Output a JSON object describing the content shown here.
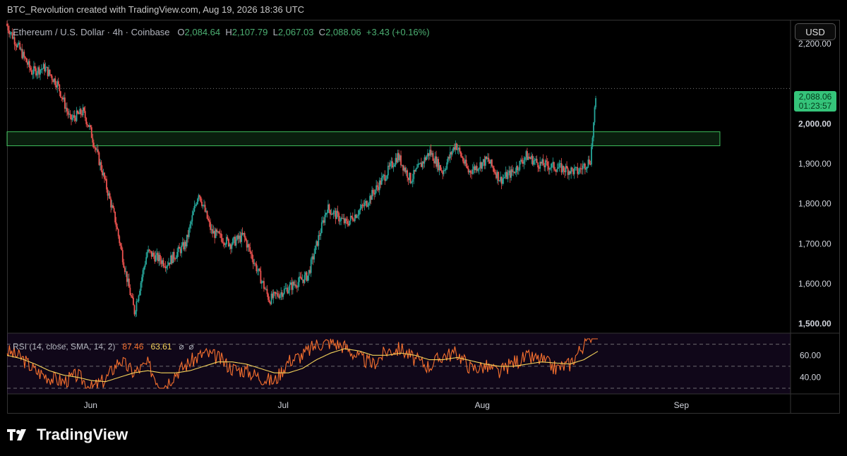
{
  "header": {
    "title": "BTC_Revolution created with TradingView.com, Aug 19, 2026 18:36 UTC"
  },
  "toolbar": {
    "currency": "USD"
  },
  "legend": {
    "symbol": "Ethereum / U.S. Dollar · 4h · Coinbase",
    "open_label": "O",
    "open": "2,084.64",
    "high_label": "H",
    "high": "2,107.79",
    "low_label": "L",
    "low": "2,067.03",
    "close_label": "C",
    "close": "2,088.06",
    "change": "+3.43 (+0.16%)"
  },
  "price_badge": {
    "price": "2,088.06",
    "countdown": "01:23:57"
  },
  "rsi_legend": {
    "label": "RSI (14, close, SMA, 14, 2)",
    "rsi": "87.46",
    "sma": "63.61",
    "icon_a": "⌀",
    "icon_b": "⌀"
  },
  "brand": {
    "name": "TradingView"
  },
  "colors": {
    "up": "#26a69a",
    "down": "#ef5350",
    "zone": "#3dbb5a",
    "rsi": "#f7702e",
    "rsi_sma": "#f5d35b",
    "badge": "#35c47a"
  },
  "chart_data": [
    {
      "type": "candlestick",
      "title": "Ethereum / U.S. Dollar",
      "interval": "4h",
      "exchange": "Coinbase",
      "ylim": [
        1480,
        2260
      ],
      "y_ticks": [
        "2,200.00",
        "2,000.00",
        "1,900.00",
        "1,800.00",
        "1,700.00",
        "1,600.00",
        "1,500.00"
      ],
      "y_tick_values": [
        2200,
        2000,
        1900,
        1800,
        1700,
        1600,
        1500
      ],
      "x_ticks": [
        "Jun",
        "Jul",
        "Aug",
        "Sep"
      ],
      "x_tick_dates": [
        "2026-06-01",
        "2026-07-01",
        "2026-08-01",
        "2026-09-01"
      ],
      "x_range": [
        "2026-05-19",
        "2026-09-18"
      ],
      "last_price": 2088.06,
      "resistance_zone": {
        "from_date": "2026-05-19",
        "to_date": "2026-09-07",
        "low": 1945,
        "high": 1980
      },
      "price_anchors": [
        {
          "date": "2026-05-19",
          "price": 2250
        },
        {
          "date": "2026-05-21",
          "price": 2190
        },
        {
          "date": "2026-05-23",
          "price": 2130
        },
        {
          "date": "2026-05-25",
          "price": 2140
        },
        {
          "date": "2026-05-27",
          "price": 2100
        },
        {
          "date": "2026-05-29",
          "price": 2010
        },
        {
          "date": "2026-05-31",
          "price": 2030
        },
        {
          "date": "2026-06-01",
          "price": 1990
        },
        {
          "date": "2026-06-03",
          "price": 1880
        },
        {
          "date": "2026-06-05",
          "price": 1760
        },
        {
          "date": "2026-06-07",
          "price": 1600
        },
        {
          "date": "2026-06-08",
          "price": 1530
        },
        {
          "date": "2026-06-10",
          "price": 1680
        },
        {
          "date": "2026-06-13",
          "price": 1650
        },
        {
          "date": "2026-06-16",
          "price": 1700
        },
        {
          "date": "2026-06-18",
          "price": 1830
        },
        {
          "date": "2026-06-20",
          "price": 1730
        },
        {
          "date": "2026-06-23",
          "price": 1700
        },
        {
          "date": "2026-06-25",
          "price": 1720
        },
        {
          "date": "2026-06-27",
          "price": 1640
        },
        {
          "date": "2026-06-29",
          "price": 1560
        },
        {
          "date": "2026-07-02",
          "price": 1590
        },
        {
          "date": "2026-07-05",
          "price": 1620
        },
        {
          "date": "2026-07-08",
          "price": 1790
        },
        {
          "date": "2026-07-11",
          "price": 1750
        },
        {
          "date": "2026-07-14",
          "price": 1800
        },
        {
          "date": "2026-07-17",
          "price": 1870
        },
        {
          "date": "2026-07-19",
          "price": 1920
        },
        {
          "date": "2026-07-21",
          "price": 1860
        },
        {
          "date": "2026-07-24",
          "price": 1930
        },
        {
          "date": "2026-07-26",
          "price": 1880
        },
        {
          "date": "2026-07-28",
          "price": 1950
        },
        {
          "date": "2026-07-30",
          "price": 1880
        },
        {
          "date": "2026-08-02",
          "price": 1910
        },
        {
          "date": "2026-08-04",
          "price": 1860
        },
        {
          "date": "2026-08-06",
          "price": 1880
        },
        {
          "date": "2026-08-08",
          "price": 1920
        },
        {
          "date": "2026-08-10",
          "price": 1900
        },
        {
          "date": "2026-08-13",
          "price": 1890
        },
        {
          "date": "2026-08-16",
          "price": 1880
        },
        {
          "date": "2026-08-18",
          "price": 1910
        },
        {
          "date": "2026-08-19",
          "price": 2088
        }
      ]
    },
    {
      "type": "line",
      "title": "RSI (14, close, SMA, 14, 2)",
      "ylim": [
        30,
        75
      ],
      "y_ticks": [
        "60.00",
        "40.00"
      ],
      "y_tick_values": [
        60,
        40
      ],
      "levels": [
        70,
        50,
        30
      ],
      "series": [
        {
          "name": "RSI",
          "last": 87.46,
          "values": [
            64,
            58,
            46,
            40,
            36,
            42,
            30,
            38,
            56,
            44,
            52,
            30,
            44,
            54,
            62,
            58,
            48,
            46,
            40,
            36,
            55,
            60,
            70,
            72,
            68,
            58,
            52,
            64,
            66,
            56,
            50,
            60,
            62,
            48,
            50,
            44,
            54,
            58,
            56,
            48,
            52,
            70,
            87.46
          ]
        },
        {
          "name": "SMA",
          "last": 63.61,
          "values": [
            60,
            57,
            52,
            46,
            42,
            40,
            37,
            36,
            40,
            44,
            46,
            44,
            44,
            46,
            50,
            54,
            54,
            52,
            48,
            44,
            44,
            48,
            56,
            62,
            66,
            64,
            60,
            60,
            62,
            60,
            56,
            56,
            58,
            55,
            52,
            50,
            50,
            52,
            54,
            53,
            52,
            56,
            63.61
          ]
        }
      ]
    }
  ]
}
